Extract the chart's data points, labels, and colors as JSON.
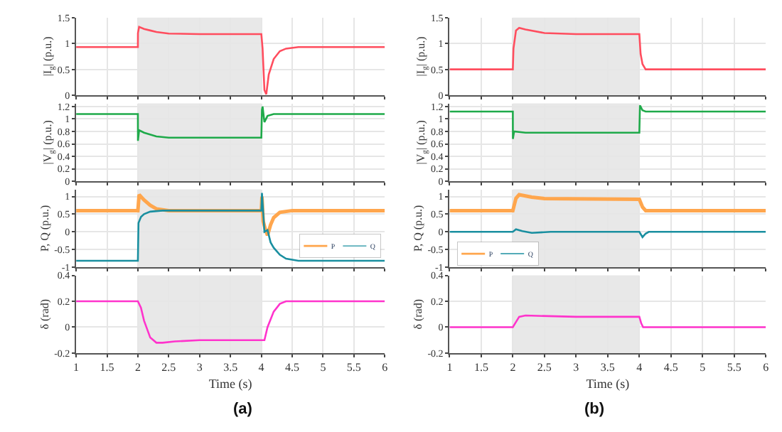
{
  "chart_data": [
    {
      "type": "line",
      "ylabel": "|I$_{g}$| (p.u.)",
      "xlim": [
        1,
        6
      ],
      "xticks": [
        1,
        1.5,
        2,
        2.5,
        3,
        3.5,
        4,
        4.5,
        5,
        5.5,
        6
      ],
      "ylim": [
        0,
        1.5
      ],
      "yticks": [
        0,
        0.5,
        1,
        1.5
      ],
      "grid": true,
      "tick_labels": "y",
      "legend": false,
      "bands": [
        {
          "axis": "x",
          "from": 2,
          "to": 4,
          "color": "#e8e8e8"
        }
      ],
      "series": [
        {
          "color": "#ff4d5e",
          "x": [
            1,
            2,
            2.001,
            2.02,
            2.1,
            2.2,
            2.3,
            2.5,
            3,
            4,
            4.02,
            4.05,
            4.08,
            4.12,
            4.2,
            4.3,
            4.4,
            4.6,
            5,
            6
          ],
          "values": [
            0.93,
            0.93,
            1.2,
            1.32,
            1.28,
            1.25,
            1.22,
            1.19,
            1.18,
            1.18,
            0.9,
            0.1,
            0.02,
            0.4,
            0.7,
            0.85,
            0.9,
            0.93,
            0.93,
            0.93
          ]
        }
      ]
    },
    {
      "type": "line",
      "ylabel": "|I$_{g}$| (p.u.)",
      "xlim": [
        1,
        6
      ],
      "xticks": [
        1,
        1.5,
        2,
        2.5,
        3,
        3.5,
        4,
        4.5,
        5,
        5.5,
        6
      ],
      "ylim": [
        0,
        1.5
      ],
      "yticks": [
        0,
        0.5,
        1,
        1.5
      ],
      "grid": true,
      "tick_labels": "y",
      "legend": false,
      "bands": [
        {
          "axis": "x",
          "from": 2,
          "to": 4,
          "color": "#e8e8e8"
        }
      ],
      "series": [
        {
          "color": "#ff4d5e",
          "x": [
            1,
            2,
            2.01,
            2.05,
            2.1,
            2.2,
            2.5,
            3,
            4,
            4.02,
            4.05,
            4.1,
            4.2,
            5,
            6
          ],
          "values": [
            0.5,
            0.5,
            0.9,
            1.25,
            1.3,
            1.27,
            1.2,
            1.18,
            1.18,
            0.8,
            0.6,
            0.5,
            0.5,
            0.5,
            0.5
          ]
        }
      ]
    },
    {
      "type": "line",
      "ylabel": "|V$_{g}$| (p.u.)",
      "xlim": [
        1,
        6
      ],
      "xticks": [
        1,
        1.5,
        2,
        2.5,
        3,
        3.5,
        4,
        4.5,
        5,
        5.5,
        6
      ],
      "ylim": [
        0,
        1.25
      ],
      "yticks": [
        0,
        0.2,
        0.4,
        0.6,
        0.8,
        1,
        1.2
      ],
      "grid": true,
      "tick_labels": "y",
      "legend": false,
      "bands": [
        {
          "axis": "x",
          "from": 2,
          "to": 4,
          "color": "#e8e8e8"
        }
      ],
      "series": [
        {
          "color": "#1faa4a",
          "x": [
            1,
            2,
            2.001,
            2.02,
            2.1,
            2.3,
            2.5,
            3,
            4,
            4.01,
            4.02,
            4.05,
            4.1,
            4.2,
            5,
            6
          ],
          "values": [
            1.08,
            1.08,
            0.65,
            0.82,
            0.78,
            0.72,
            0.7,
            0.7,
            0.7,
            1.15,
            1.2,
            0.95,
            1.05,
            1.08,
            1.08,
            1.08
          ]
        }
      ]
    },
    {
      "type": "line",
      "ylabel": "|V$_{g}$| (p.u.)",
      "xlim": [
        1,
        6
      ],
      "xticks": [
        1,
        1.5,
        2,
        2.5,
        3,
        3.5,
        4,
        4.5,
        5,
        5.5,
        6
      ],
      "ylim": [
        0,
        1.25
      ],
      "yticks": [
        0,
        0.2,
        0.4,
        0.6,
        0.8,
        1,
        1.2
      ],
      "grid": true,
      "tick_labels": "y",
      "legend": false,
      "bands": [
        {
          "axis": "x",
          "from": 2,
          "to": 4,
          "color": "#e8e8e8"
        }
      ],
      "series": [
        {
          "color": "#1faa4a",
          "x": [
            1,
            2,
            2.001,
            2.02,
            2.2,
            3,
            4,
            4.01,
            4.05,
            4.1,
            5,
            6
          ],
          "values": [
            1.12,
            1.12,
            0.68,
            0.8,
            0.78,
            0.78,
            0.78,
            1.22,
            1.14,
            1.12,
            1.12,
            1.12
          ]
        }
      ]
    },
    {
      "type": "line",
      "ylabel": "P, Q (p.u.)",
      "xlim": [
        1,
        6
      ],
      "xticks": [
        1,
        1.5,
        2,
        2.5,
        3,
        3.5,
        4,
        4.5,
        5,
        5.5,
        6
      ],
      "ylim": [
        -1,
        1.2
      ],
      "yticks": [
        -1,
        -0.5,
        0,
        0.5,
        1
      ],
      "grid": true,
      "tick_labels": "y",
      "legend": "bottom right",
      "bands": [
        {
          "axis": "x",
          "from": 2,
          "to": 4,
          "color": "#e8e8e8"
        }
      ],
      "series": [
        {
          "name": "P",
          "color": "#ffa64d",
          "x": [
            1,
            2,
            2.02,
            2.1,
            2.2,
            2.3,
            2.5,
            4,
            4.01,
            4.03,
            4.06,
            4.1,
            4.15,
            4.2,
            4.3,
            4.5,
            6
          ],
          "values": [
            0.6,
            0.6,
            1.05,
            0.9,
            0.75,
            0.65,
            0.6,
            0.6,
            1.0,
            0.3,
            0.1,
            -0.1,
            0.2,
            0.4,
            0.55,
            0.6,
            0.6
          ]
        },
        {
          "name": "Q",
          "color": "#1a8fa0",
          "x": [
            1,
            2,
            2.01,
            2.05,
            2.1,
            2.2,
            2.4,
            4,
            4.01,
            4.05,
            4.1,
            4.15,
            4.2,
            4.3,
            4.4,
            4.6,
            6
          ],
          "values": [
            -0.82,
            -0.82,
            0.25,
            0.42,
            0.5,
            0.57,
            0.6,
            0.6,
            1.1,
            0.0,
            0.05,
            -0.3,
            -0.45,
            -0.65,
            -0.76,
            -0.82,
            -0.82
          ]
        }
      ]
    },
    {
      "type": "line",
      "ylabel": "P, Q (p.u.)",
      "xlim": [
        1,
        6
      ],
      "xticks": [
        1,
        1.5,
        2,
        2.5,
        3,
        3.5,
        4,
        4.5,
        5,
        5.5,
        6
      ],
      "ylim": [
        -1,
        1.2
      ],
      "yticks": [
        -1,
        -0.5,
        0,
        0.5,
        1
      ],
      "grid": true,
      "tick_labels": "y",
      "legend": "bottom left",
      "bands": [
        {
          "axis": "x",
          "from": 2,
          "to": 4,
          "color": "#e8e8e8"
        }
      ],
      "series": [
        {
          "name": "P",
          "color": "#ffa64d",
          "x": [
            1,
            2,
            2.05,
            2.1,
            2.3,
            2.5,
            4,
            4.05,
            4.1,
            4.3,
            6
          ],
          "values": [
            0.6,
            0.6,
            0.95,
            1.05,
            0.98,
            0.94,
            0.92,
            0.7,
            0.6,
            0.6,
            0.6
          ]
        },
        {
          "name": "Q",
          "color": "#1a8fa0",
          "x": [
            1,
            2,
            2.05,
            2.15,
            2.3,
            2.6,
            4,
            4.05,
            4.1,
            4.15,
            6
          ],
          "values": [
            0,
            0,
            0.07,
            0.02,
            -0.03,
            0,
            0,
            -0.15,
            -0.05,
            0,
            0
          ]
        }
      ]
    },
    {
      "type": "line",
      "ylabel": "δ (rad)",
      "xlabel": "Time (s)",
      "xlim": [
        1,
        6
      ],
      "xticks": [
        1,
        1.5,
        2,
        2.5,
        3,
        3.5,
        4,
        4.5,
        5,
        5.5,
        6
      ],
      "ylim": [
        -0.2,
        0.4
      ],
      "yticks": [
        -0.2,
        0,
        0.2,
        0.4
      ],
      "grid": true,
      "legend": false,
      "annotations": [
        "(a)"
      ],
      "bands": [
        {
          "axis": "x",
          "from": 2,
          "to": 4,
          "color": "#e8e8e8"
        }
      ],
      "series": [
        {
          "color": "#ff33cc",
          "x": [
            1,
            2,
            2.05,
            2.1,
            2.2,
            2.3,
            2.4,
            2.6,
            3,
            4,
            4.05,
            4.1,
            4.2,
            4.3,
            4.4,
            4.5,
            6
          ],
          "values": [
            0.2,
            0.2,
            0.15,
            0.05,
            -0.08,
            -0.12,
            -0.12,
            -0.11,
            -0.1,
            -0.1,
            -0.1,
            0.0,
            0.12,
            0.18,
            0.2,
            0.2,
            0.2
          ]
        }
      ]
    },
    {
      "type": "line",
      "ylabel": "δ (rad)",
      "xlabel": "Time (s)",
      "xlim": [
        1,
        6
      ],
      "xticks": [
        1,
        1.5,
        2,
        2.5,
        3,
        3.5,
        4,
        4.5,
        5,
        5.5,
        6
      ],
      "ylim": [
        -0.2,
        0.4
      ],
      "yticks": [
        -0.2,
        0,
        0.2,
        0.4
      ],
      "grid": true,
      "legend": false,
      "annotations": [
        "(b)"
      ],
      "bands": [
        {
          "axis": "x",
          "from": 2,
          "to": 4,
          "color": "#e8e8e8"
        }
      ],
      "series": [
        {
          "color": "#ff33cc",
          "x": [
            1,
            2,
            2.05,
            2.1,
            2.2,
            3,
            4,
            4.03,
            4.06,
            6
          ],
          "values": [
            0,
            0,
            0.04,
            0.08,
            0.09,
            0.08,
            0.08,
            0.03,
            0,
            0
          ]
        }
      ]
    }
  ]
}
